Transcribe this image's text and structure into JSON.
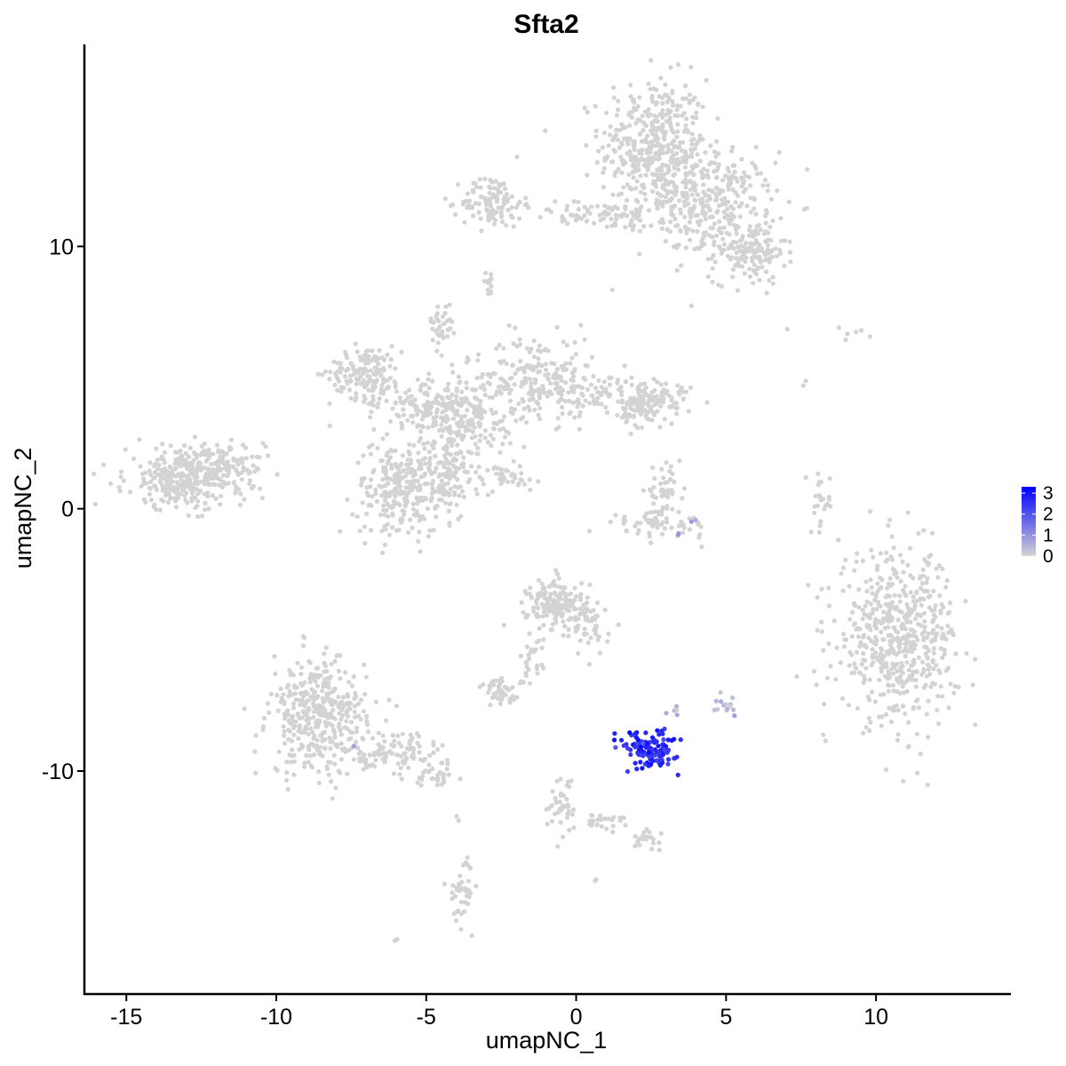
{
  "chart_data": {
    "type": "scatter",
    "title": "Sfta2",
    "xlabel": "umapNC_1",
    "ylabel": "umapNC_2",
    "xlim": [
      -16.4,
      14.5
    ],
    "ylim": [
      -18.5,
      17.7
    ],
    "x_ticks": [
      -15,
      -10,
      -5,
      0,
      5,
      10
    ],
    "y_ticks": [
      10,
      0,
      -10
    ],
    "x_tick_labels": [
      "-15",
      "-10",
      "-5",
      "0",
      "5",
      "10"
    ],
    "y_tick_labels": [
      "10",
      "0",
      "-10"
    ],
    "grid": false,
    "legend_position": "right",
    "color_scale": {
      "low_color": "#d3d3d3",
      "high_color": "#0000ff",
      "min": 0,
      "max": 3.3,
      "ticks": [
        0,
        1,
        2,
        3
      ],
      "tick_labels": [
        "0",
        "1",
        "2",
        "3"
      ]
    },
    "clusters": [
      {
        "cx": 2.6,
        "cy": 13.8,
        "sx": 0.9,
        "sy": 1.3,
        "n": 420,
        "value": 0
      },
      {
        "cx": 4.4,
        "cy": 11.6,
        "sx": 1.1,
        "sy": 1.0,
        "n": 320,
        "value": 0
      },
      {
        "cx": 5.8,
        "cy": 9.8,
        "sx": 0.6,
        "sy": 0.6,
        "n": 140,
        "value": 0
      },
      {
        "cx": -2.8,
        "cy": 11.7,
        "sx": 0.5,
        "sy": 0.5,
        "n": 110,
        "value": 0
      },
      {
        "cx": 0.6,
        "cy": 11.2,
        "sx": 1.1,
        "sy": 0.25,
        "n": 70,
        "value": 0
      },
      {
        "cx": -2.9,
        "cy": 8.6,
        "sx": 0.12,
        "sy": 0.25,
        "n": 12,
        "value": 0
      },
      {
        "cx": -7.0,
        "cy": 5.2,
        "sx": 0.6,
        "sy": 0.5,
        "n": 150,
        "value": 0
      },
      {
        "cx": -5.0,
        "cy": 4.0,
        "sx": 1.0,
        "sy": 0.4,
        "n": 110,
        "value": 0
      },
      {
        "cx": -3.8,
        "cy": 3.5,
        "sx": 0.9,
        "sy": 0.9,
        "n": 230,
        "value": 0
      },
      {
        "cx": -1.2,
        "cy": 5.0,
        "sx": 0.9,
        "sy": 0.8,
        "n": 190,
        "value": 0
      },
      {
        "cx": 1.5,
        "cy": 4.3,
        "sx": 1.3,
        "sy": 0.4,
        "n": 130,
        "value": 0
      },
      {
        "cx": 2.3,
        "cy": 3.9,
        "sx": 0.4,
        "sy": 0.4,
        "n": 90,
        "value": 0
      },
      {
        "cx": -4.5,
        "cy": 7.0,
        "sx": 0.18,
        "sy": 0.4,
        "n": 35,
        "value": 0
      },
      {
        "cx": -6.0,
        "cy": 0.7,
        "sx": 0.7,
        "sy": 0.9,
        "n": 200,
        "value": 0
      },
      {
        "cx": -4.5,
        "cy": 1.2,
        "sx": 0.6,
        "sy": 0.8,
        "n": 160,
        "value": 0
      },
      {
        "cx": -2.3,
        "cy": 1.2,
        "sx": 0.7,
        "sy": 0.3,
        "n": 35,
        "value": 0
      },
      {
        "cx": -13.0,
        "cy": 1.2,
        "sx": 1.0,
        "sy": 0.6,
        "n": 330,
        "value": 0
      },
      {
        "cx": -11.6,
        "cy": 1.6,
        "sx": 0.6,
        "sy": 0.4,
        "n": 70,
        "value": 0
      },
      {
        "cx": 2.9,
        "cy": 0.7,
        "sx": 0.3,
        "sy": 0.4,
        "n": 45,
        "value": 0
      },
      {
        "cx": 2.7,
        "cy": -0.6,
        "sx": 0.9,
        "sy": 0.25,
        "n": 60,
        "value": 0
      },
      {
        "cx": 8.2,
        "cy": 0.2,
        "sx": 0.18,
        "sy": 0.6,
        "n": 25,
        "value": 0
      },
      {
        "cx": 10.7,
        "cy": -4.9,
        "sx": 1.0,
        "sy": 1.6,
        "n": 560,
        "value": 0
      },
      {
        "cx": -0.6,
        "cy": -3.7,
        "sx": 0.5,
        "sy": 0.5,
        "n": 180,
        "value": 0
      },
      {
        "cx": 0.5,
        "cy": -4.6,
        "sx": 0.3,
        "sy": 0.5,
        "n": 40,
        "value": 0
      },
      {
        "cx": -1.5,
        "cy": -5.8,
        "sx": 0.2,
        "sy": 0.5,
        "n": 25,
        "value": 0
      },
      {
        "cx": -2.5,
        "cy": -7.0,
        "sx": 0.35,
        "sy": 0.25,
        "n": 45,
        "value": 0
      },
      {
        "cx": -8.6,
        "cy": -7.9,
        "sx": 0.8,
        "sy": 1.1,
        "n": 380,
        "value": 0
      },
      {
        "cx": -6.2,
        "cy": -9.3,
        "sx": 1.0,
        "sy": 0.4,
        "n": 120,
        "value": 0
      },
      {
        "cx": -4.7,
        "cy": -10.2,
        "sx": 0.3,
        "sy": 0.2,
        "n": 25,
        "value": 0
      },
      {
        "cx": -3.8,
        "cy": -14.5,
        "sx": 0.2,
        "sy": 0.6,
        "n": 40,
        "value": 0
      },
      {
        "cx": -0.4,
        "cy": -11.2,
        "sx": 0.25,
        "sy": 0.6,
        "n": 40,
        "value": 0
      },
      {
        "cx": 0.9,
        "cy": -11.9,
        "sx": 0.5,
        "sy": 0.15,
        "n": 25,
        "value": 0
      },
      {
        "cx": 2.3,
        "cy": -12.6,
        "sx": 0.25,
        "sy": 0.15,
        "n": 20,
        "value": 0
      },
      {
        "cx": 3.3,
        "cy": -7.7,
        "sx": 0.1,
        "sy": 0.12,
        "n": 5,
        "value": 0.7
      },
      {
        "cx": 4.9,
        "cy": -7.4,
        "sx": 0.2,
        "sy": 0.25,
        "n": 14,
        "value": 0.5
      },
      {
        "cx": 2.5,
        "cy": -9.2,
        "sx": 0.45,
        "sy": 0.35,
        "n": 130,
        "value": 2.6
      },
      {
        "cx": 3.9,
        "cy": -0.5,
        "sx": 0.05,
        "sy": 0.05,
        "n": 2,
        "value": 1.0
      },
      {
        "cx": 3.4,
        "cy": -1.0,
        "sx": 0.05,
        "sy": 0.05,
        "n": 2,
        "value": 1.2
      },
      {
        "cx": 8.8,
        "cy": 6.7,
        "sx": 0.8,
        "sy": 0.15,
        "n": 6,
        "value": 0
      },
      {
        "cx": 7.0,
        "cy": 6.9,
        "sx": 0.05,
        "sy": 0.05,
        "n": 1,
        "value": 0
      },
      {
        "cx": 7.6,
        "cy": 4.8,
        "sx": 0.05,
        "sy": 0.1,
        "n": 2,
        "value": 0
      },
      {
        "cx": -6.0,
        "cy": -16.4,
        "sx": 0.05,
        "sy": 0.05,
        "n": 2,
        "value": 0
      },
      {
        "cx": 0.6,
        "cy": -14.1,
        "sx": 0.05,
        "sy": 0.05,
        "n": 2,
        "value": 0
      },
      {
        "cx": -4.0,
        "cy": -11.8,
        "sx": 0.05,
        "sy": 0.1,
        "n": 2,
        "value": 0
      },
      {
        "cx": -7.4,
        "cy": -9.0,
        "sx": 0.05,
        "sy": 0.05,
        "n": 1,
        "value": 0.6
      }
    ]
  }
}
